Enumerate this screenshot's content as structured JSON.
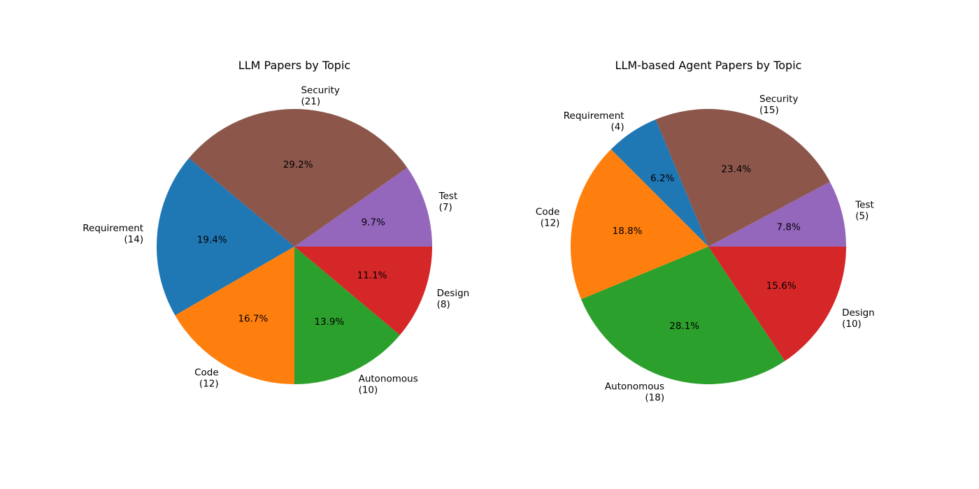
{
  "chart_data": [
    {
      "type": "pie",
      "title": "LLM Papers by Topic",
      "slices": [
        {
          "label": "Requirement",
          "count_text": "(14)",
          "value": 14,
          "pct_text": "19.4%",
          "color": "#1f77b4"
        },
        {
          "label": "Code",
          "count_text": "(12)",
          "value": 12,
          "pct_text": "16.7%",
          "color": "#ff7f0e"
        },
        {
          "label": "Autonomous",
          "count_text": "(10)",
          "value": 10,
          "pct_text": "13.9%",
          "color": "#2ca02c"
        },
        {
          "label": "Design",
          "count_text": "(8)",
          "value": 8,
          "pct_text": "11.1%",
          "color": "#d62728"
        },
        {
          "label": "Test",
          "count_text": "(7)",
          "value": 7,
          "pct_text": "9.7%",
          "color": "#9467bd"
        },
        {
          "label": "Security",
          "count_text": "(21)",
          "value": 21,
          "pct_text": "29.2%",
          "color": "#8c564b"
        }
      ]
    },
    {
      "type": "pie",
      "title": "LLM-based Agent Papers by Topic",
      "slices": [
        {
          "label": "Requirement",
          "count_text": "(4)",
          "value": 4,
          "pct_text": "6.2%",
          "color": "#1f77b4"
        },
        {
          "label": "Code",
          "count_text": "(12)",
          "value": 12,
          "pct_text": "18.8%",
          "color": "#ff7f0e"
        },
        {
          "label": "Autonomous",
          "count_text": "(18)",
          "value": 18,
          "pct_text": "28.1%",
          "color": "#2ca02c"
        },
        {
          "label": "Design",
          "count_text": "(10)",
          "value": 10,
          "pct_text": "15.6%",
          "color": "#d62728"
        },
        {
          "label": "Test",
          "count_text": "(5)",
          "value": 5,
          "pct_text": "7.8%",
          "color": "#9467bd"
        },
        {
          "label": "Security",
          "count_text": "(15)",
          "value": 15,
          "pct_text": "23.4%",
          "color": "#8c564b"
        }
      ]
    }
  ]
}
